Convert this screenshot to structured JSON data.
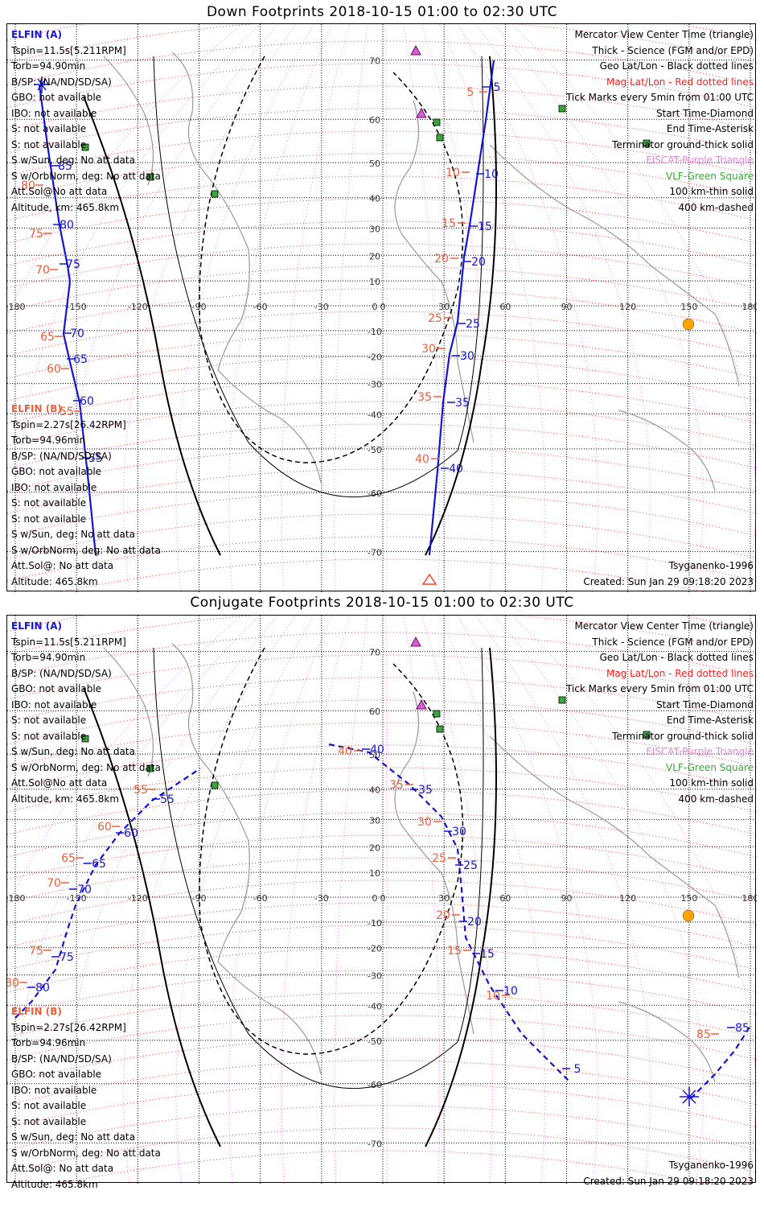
{
  "panels": [
    {
      "id": "down",
      "title": "Down Footprints 2018-10-15 01:00 to 02:30 UTC",
      "elfin_a": {
        "name": "ELFIN (A)",
        "lines": [
          "Tspin=11.5s[5.211RPM]",
          "Torb=94.90min",
          "B/SP: (NA/ND/SD/SA)",
          "GBO: not available",
          "IBO: not available",
          "S: not available",
          "S: not available",
          "S w/Sun, deg: No att data",
          "S w/OrbNorm, deg: No att data",
          "Att.Sol@No att data",
          "Altitude, km: 465.8km"
        ]
      },
      "elfin_b": {
        "name": "ELFIN (B)",
        "lines": [
          "Tspin=2.27s[26.42RPM]",
          "Torb=94.96min",
          "B/SP: (NA/ND/SD/SA)",
          "GBO: not available",
          "IBO: not available",
          "S: not available",
          "S: not available",
          "S w/Sun, deg: No att data",
          "S w/OrbNorm, deg: No att data",
          "Att.Sol@: No att data",
          "Altitude: 465.8km"
        ]
      },
      "tick_labels_a": [
        {
          "t": "85",
          "c": "blue"
        },
        {
          "t": "80",
          "c": "blue"
        },
        {
          "t": "75",
          "c": "blue"
        },
        {
          "t": "70",
          "c": "blue"
        },
        {
          "t": "65",
          "c": "blue"
        },
        {
          "t": "60",
          "c": "blue"
        },
        {
          "t": "55",
          "c": "blue"
        },
        {
          "t": "5",
          "c": "blue"
        },
        {
          "t": "10",
          "c": "blue"
        },
        {
          "t": "15",
          "c": "blue"
        },
        {
          "t": "20",
          "c": "blue"
        },
        {
          "t": "25",
          "c": "blue"
        },
        {
          "t": "30",
          "c": "blue"
        },
        {
          "t": "35",
          "c": "blue"
        },
        {
          "t": "40",
          "c": "blue"
        }
      ],
      "tick_labels_b": [
        {
          "t": "80",
          "c": "orange"
        },
        {
          "t": "75",
          "c": "orange"
        },
        {
          "t": "70",
          "c": "orange"
        },
        {
          "t": "65",
          "c": "orange"
        },
        {
          "t": "60",
          "c": "orange"
        },
        {
          "t": "55",
          "c": "orange"
        },
        {
          "t": "5",
          "c": "orange"
        },
        {
          "t": "10",
          "c": "orange"
        },
        {
          "t": "15",
          "c": "orange"
        },
        {
          "t": "20",
          "c": "orange"
        },
        {
          "t": "25",
          "c": "orange"
        },
        {
          "t": "30",
          "c": "orange"
        },
        {
          "t": "35",
          "c": "orange"
        },
        {
          "t": "40",
          "c": "orange"
        }
      ]
    },
    {
      "id": "conjugate",
      "title": "Conjugate Footprints 2018-10-15 01:00 to 02:30 UTC",
      "elfin_a": {
        "name": "ELFIN (A)",
        "lines": [
          "Tspin=11.5s[5.211RPM]",
          "Torb=94.90min",
          "B/SP: (NA/ND/SD/SA)",
          "GBO: not available",
          "IBO: not available",
          "S: not available",
          "S: not available",
          "S w/Sun, deg: No att data",
          "S w/OrbNorm, deg: No att data",
          "Att.Sol@No att data",
          "Altitude, km: 465.8km"
        ]
      },
      "elfin_b": {
        "name": "ELFIN (B)",
        "lines": [
          "Tspin=2.27s[26.42RPM]",
          "Torb=94.96min",
          "B/SP: (NA/ND/SD/SA)",
          "GBO: not available",
          "IBO: not available",
          "S: not available",
          "S: not available",
          "S w/Sun, deg: No att data",
          "S w/OrbNorm, deg: No att data",
          "Att.Sol@: No att data",
          "Altitude: 465.8km"
        ]
      },
      "tick_labels_a": [
        {
          "t": "55",
          "c": "blue"
        },
        {
          "t": "60",
          "c": "blue"
        },
        {
          "t": "65",
          "c": "blue"
        },
        {
          "t": "70",
          "c": "blue"
        },
        {
          "t": "75",
          "c": "blue"
        },
        {
          "t": "80",
          "c": "blue"
        },
        {
          "t": "85",
          "c": "blue"
        },
        {
          "t": "40",
          "c": "blue"
        },
        {
          "t": "35",
          "c": "blue"
        },
        {
          "t": "30",
          "c": "blue"
        },
        {
          "t": "25",
          "c": "blue"
        },
        {
          "t": "20",
          "c": "blue"
        },
        {
          "t": "15",
          "c": "blue"
        },
        {
          "t": "10",
          "c": "blue"
        },
        {
          "t": "5",
          "c": "blue"
        }
      ],
      "tick_labels_b": [
        {
          "t": "55",
          "c": "orange"
        },
        {
          "t": "60",
          "c": "orange"
        },
        {
          "t": "65",
          "c": "orange"
        },
        {
          "t": "70",
          "c": "orange"
        },
        {
          "t": "75",
          "c": "orange"
        },
        {
          "t": "80",
          "c": "orange"
        },
        {
          "t": "85",
          "c": "orange"
        },
        {
          "t": "40",
          "c": "orange"
        },
        {
          "t": "35",
          "c": "orange"
        },
        {
          "t": "30",
          "c": "orange"
        },
        {
          "t": "25",
          "c": "orange"
        },
        {
          "t": "20",
          "c": "orange"
        },
        {
          "t": "15",
          "c": "orange"
        },
        {
          "t": "10",
          "c": "orange"
        }
      ]
    }
  ],
  "legend": {
    "center_time": "Mercator View Center Time (triangle)",
    "thick": "Thick - Science (FGM and/or EPD)",
    "geo": "Geo Lat/Lon - Black dotted lines",
    "mag": "Mag Lat/Lon - Red dotted lines",
    "ticks": "Tick Marks every 5min from 01:00 UTC",
    "start": "Start Time-Diamond",
    "end": "End Time-Asterisk",
    "terminator": "Terminator ground-thick solid",
    "eiscat": "EISCAT-Purple Triangle",
    "vlf": "VLF-Green Square",
    "km100": "100 km-thin solid",
    "km400": "400 km-dashed"
  },
  "footer": {
    "model": "Tsyganenko-1996",
    "created": "Created: Sun Jan 29 09:18:20 2023"
  },
  "axes": {
    "lon_ticks": [
      "-180",
      "-150",
      "-120",
      "-90",
      "-60",
      "-30",
      "0",
      "30",
      "60",
      "90",
      "120",
      "150",
      "180"
    ],
    "lat_ticks": [
      "70",
      "60",
      "50",
      "40",
      "30",
      "20",
      "10",
      "0",
      "-10",
      "-20",
      "-30",
      "-40",
      "-50",
      "-60",
      "-70"
    ]
  },
  "colors": {
    "elfin_a": "#1414d2",
    "elfin_b": "#e8603a",
    "mag_grid": "#ff2020",
    "geo_grid": "#000000",
    "eiscat": "#cc66cc",
    "vlf": "#3aa63a",
    "sun": "#ffa500"
  }
}
